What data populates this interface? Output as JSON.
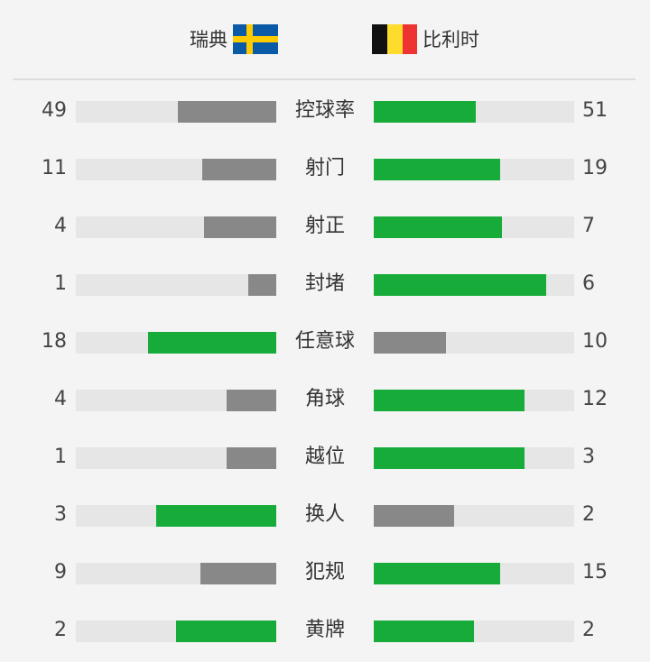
{
  "teams": {
    "home": {
      "name": "瑞典",
      "flag_icon": "sweden-flag-icon"
    },
    "away": {
      "name": "比利时",
      "flag_icon": "belgium-flag-icon"
    }
  },
  "colors": {
    "leader": "#17ab39",
    "trailer": "#888888",
    "track": "#e6e6e6",
    "sweden_blue": "#0a5aa8",
    "sweden_yellow": "#fecb00",
    "belgium_black": "#111111",
    "belgium_yellow": "#fddc2b",
    "belgium_red": "#ee3333"
  },
  "stats": [
    {
      "label": "控球率",
      "home": "49",
      "away": "51",
      "home_fill": 0.49,
      "away_fill": 0.51,
      "home_lead": false,
      "away_lead": true
    },
    {
      "label": "射门",
      "home": "11",
      "away": "19",
      "home_fill": 0.37,
      "away_fill": 0.63,
      "home_lead": false,
      "away_lead": true
    },
    {
      "label": "射正",
      "home": "4",
      "away": "7",
      "home_fill": 0.36,
      "away_fill": 0.64,
      "home_lead": false,
      "away_lead": true
    },
    {
      "label": "封堵",
      "home": "1",
      "away": "6",
      "home_fill": 0.14,
      "away_fill": 0.86,
      "home_lead": false,
      "away_lead": true
    },
    {
      "label": "任意球",
      "home": "18",
      "away": "10",
      "home_fill": 0.64,
      "away_fill": 0.36,
      "home_lead": true,
      "away_lead": false
    },
    {
      "label": "角球",
      "home": "4",
      "away": "12",
      "home_fill": 0.25,
      "away_fill": 0.75,
      "home_lead": false,
      "away_lead": true
    },
    {
      "label": "越位",
      "home": "1",
      "away": "3",
      "home_fill": 0.25,
      "away_fill": 0.75,
      "home_lead": false,
      "away_lead": true
    },
    {
      "label": "换人",
      "home": "3",
      "away": "2",
      "home_fill": 0.6,
      "away_fill": 0.4,
      "home_lead": true,
      "away_lead": false
    },
    {
      "label": "犯规",
      "home": "9",
      "away": "15",
      "home_fill": 0.38,
      "away_fill": 0.63,
      "home_lead": false,
      "away_lead": true
    },
    {
      "label": "黄牌",
      "home": "2",
      "away": "2",
      "home_fill": 0.5,
      "away_fill": 0.5,
      "home_lead": true,
      "away_lead": true
    }
  ]
}
